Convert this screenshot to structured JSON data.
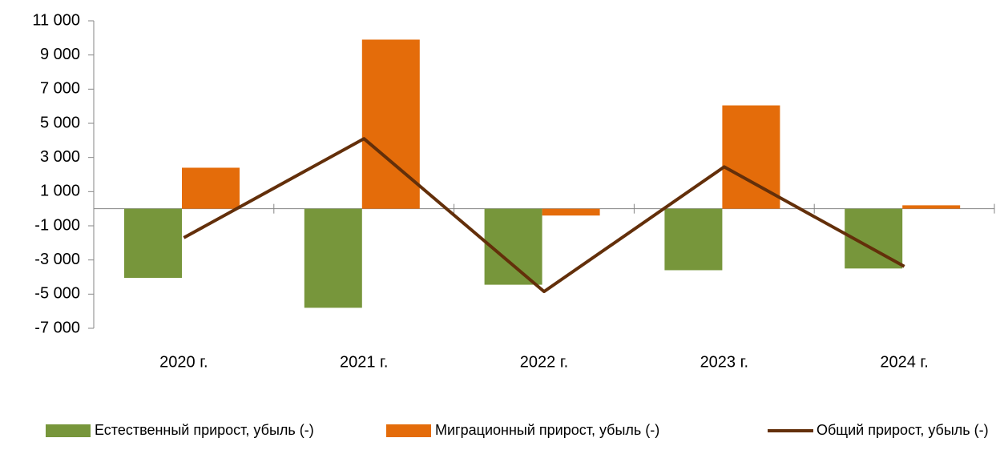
{
  "chart_data": {
    "type": "bar_line",
    "categories": [
      "2020 г.",
      "2021 г.",
      "2022 г.",
      "2023 г.",
      "2024 г."
    ],
    "series": [
      {
        "name": "Естественный прирост, убыль (-)",
        "type": "bar",
        "color": "#77963b",
        "values": [
          -4050,
          -5800,
          -4450,
          -3600,
          -3500
        ]
      },
      {
        "name": "Миграционный прирост, убыль (-)",
        "type": "bar",
        "color": "#e46c0a",
        "values": [
          2400,
          9900,
          -400,
          6050,
          200
        ]
      },
      {
        "name": "Общий прирост, убыль (-)",
        "type": "line",
        "color": "#632f0a",
        "values": [
          -1700,
          4100,
          -4850,
          2450,
          -3380
        ]
      }
    ],
    "ylim": [
      -7000,
      11000
    ],
    "yticks": [
      {
        "value": -7000,
        "label": "-7 000"
      },
      {
        "value": -5000,
        "label": "-5 000"
      },
      {
        "value": -3000,
        "label": "-3 000"
      },
      {
        "value": -1000,
        "label": "-1 000"
      },
      {
        "value": 1000,
        "label": "1 000"
      },
      {
        "value": 3000,
        "label": "3 000"
      },
      {
        "value": 5000,
        "label": "5 000"
      },
      {
        "value": 7000,
        "label": "7 000"
      },
      {
        "value": 9000,
        "label": "9 000"
      },
      {
        "value": 11000,
        "label": "11 000"
      }
    ],
    "legend": "bottom"
  }
}
